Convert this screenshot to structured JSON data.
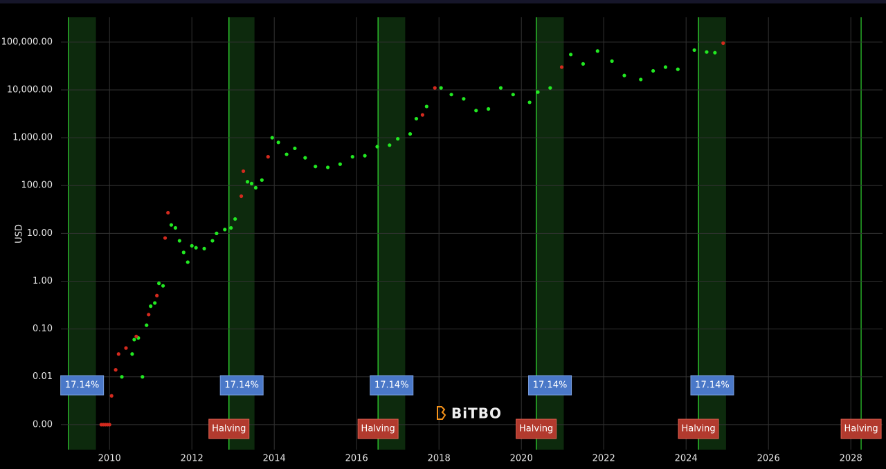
{
  "chart_data": {
    "type": "scatter",
    "y_label": "USD",
    "watermark": "BiTBO",
    "log_y": true,
    "grid": true,
    "xlim": [
      2008.82,
      2028.77
    ],
    "xticks": [
      2010,
      2012,
      2014,
      2016,
      2018,
      2020,
      2022,
      2024,
      2026,
      2028
    ],
    "ylim": [
      0.0003,
      330000
    ],
    "yticks": [
      {
        "value": 0.001,
        "label": "0.00"
      },
      {
        "value": 0.01,
        "label": "0.01"
      },
      {
        "value": 0.1,
        "label": "0.10"
      },
      {
        "value": 1,
        "label": "1.00"
      },
      {
        "value": 10,
        "label": "10.00"
      },
      {
        "value": 100,
        "label": "100.00"
      },
      {
        "value": 1000,
        "label": "1,000.00"
      },
      {
        "value": 10000,
        "label": "10,000.00"
      },
      {
        "value": 100000,
        "label": "100,000.00"
      }
    ],
    "cycles": [
      {
        "start": 2009.0,
        "end": 2009.67,
        "label": "17.14%"
      },
      {
        "start": 2012.9,
        "end": 2013.52,
        "label": "17.14%"
      },
      {
        "start": 2016.52,
        "end": 2017.18,
        "label": "17.14%"
      },
      {
        "start": 2020.36,
        "end": 2021.03,
        "label": "17.14%"
      },
      {
        "start": 2024.3,
        "end": 2024.97,
        "label": "17.14%"
      }
    ],
    "halvings": [
      {
        "x": 2012.9,
        "label": "Halving"
      },
      {
        "x": 2016.52,
        "label": "Halving"
      },
      {
        "x": 2020.36,
        "label": "Halving"
      },
      {
        "x": 2024.3,
        "label": "Halving"
      },
      {
        "x": 2028.25,
        "label": "Halving"
      }
    ],
    "series": [
      {
        "color": "#22e822",
        "x": [
          2010.3,
          2010.55,
          2010.6,
          2010.7,
          2010.8,
          2010.9,
          2011.0,
          2011.1,
          2011.2,
          2011.3,
          2011.5,
          2011.6,
          2011.7,
          2011.8,
          2011.9,
          2012.0,
          2012.1,
          2012.3,
          2012.5,
          2012.6,
          2012.8,
          2012.95,
          2013.05,
          2013.35,
          2013.45,
          2013.55,
          2013.7,
          2013.95,
          2014.1,
          2014.3,
          2014.5,
          2014.75,
          2015.0,
          2015.3,
          2015.6,
          2015.9,
          2016.2,
          2016.5,
          2016.8,
          2017.0,
          2017.3,
          2017.45,
          2017.7,
          2018.05,
          2018.3,
          2018.6,
          2018.9,
          2019.2,
          2019.5,
          2019.8,
          2020.2,
          2020.4,
          2020.7,
          2021.2,
          2021.5,
          2021.85,
          2022.2,
          2022.5,
          2022.9,
          2023.2,
          2023.5,
          2023.8,
          2024.2,
          2024.5,
          2024.7
        ],
        "values": [
          0.01,
          0.03,
          0.06,
          0.065,
          0.01,
          0.12,
          0.3,
          0.35,
          0.9,
          0.8,
          15,
          13,
          7,
          4,
          2.5,
          5.5,
          5,
          4.8,
          7,
          10,
          12,
          13,
          20,
          120,
          110,
          90,
          130,
          1000,
          800,
          450,
          600,
          380,
          250,
          240,
          280,
          400,
          420,
          650,
          700,
          950,
          1200,
          2500,
          4500,
          11000,
          8000,
          6500,
          3700,
          4000,
          11000,
          8000,
          5500,
          9000,
          11000,
          55000,
          35000,
          65000,
          40000,
          20000,
          16500,
          25000,
          30000,
          27000,
          68000,
          62000,
          60000
        ]
      },
      {
        "color": "#d42a1e",
        "x": [
          2009.8,
          2009.85,
          2009.9,
          2009.95,
          2010.0,
          2010.05,
          2010.15,
          2010.22,
          2010.4,
          2010.65,
          2010.95,
          2011.15,
          2011.35,
          2011.42,
          2013.2,
          2013.25,
          2013.85,
          2017.6,
          2017.9,
          2020.98,
          2024.9
        ],
        "values": [
          0.001,
          0.001,
          0.001,
          0.001,
          0.001,
          0.004,
          0.014,
          0.03,
          0.04,
          0.07,
          0.2,
          0.5,
          8,
          27,
          60,
          200,
          400,
          3000,
          11000,
          30000,
          95000
        ]
      }
    ]
  }
}
